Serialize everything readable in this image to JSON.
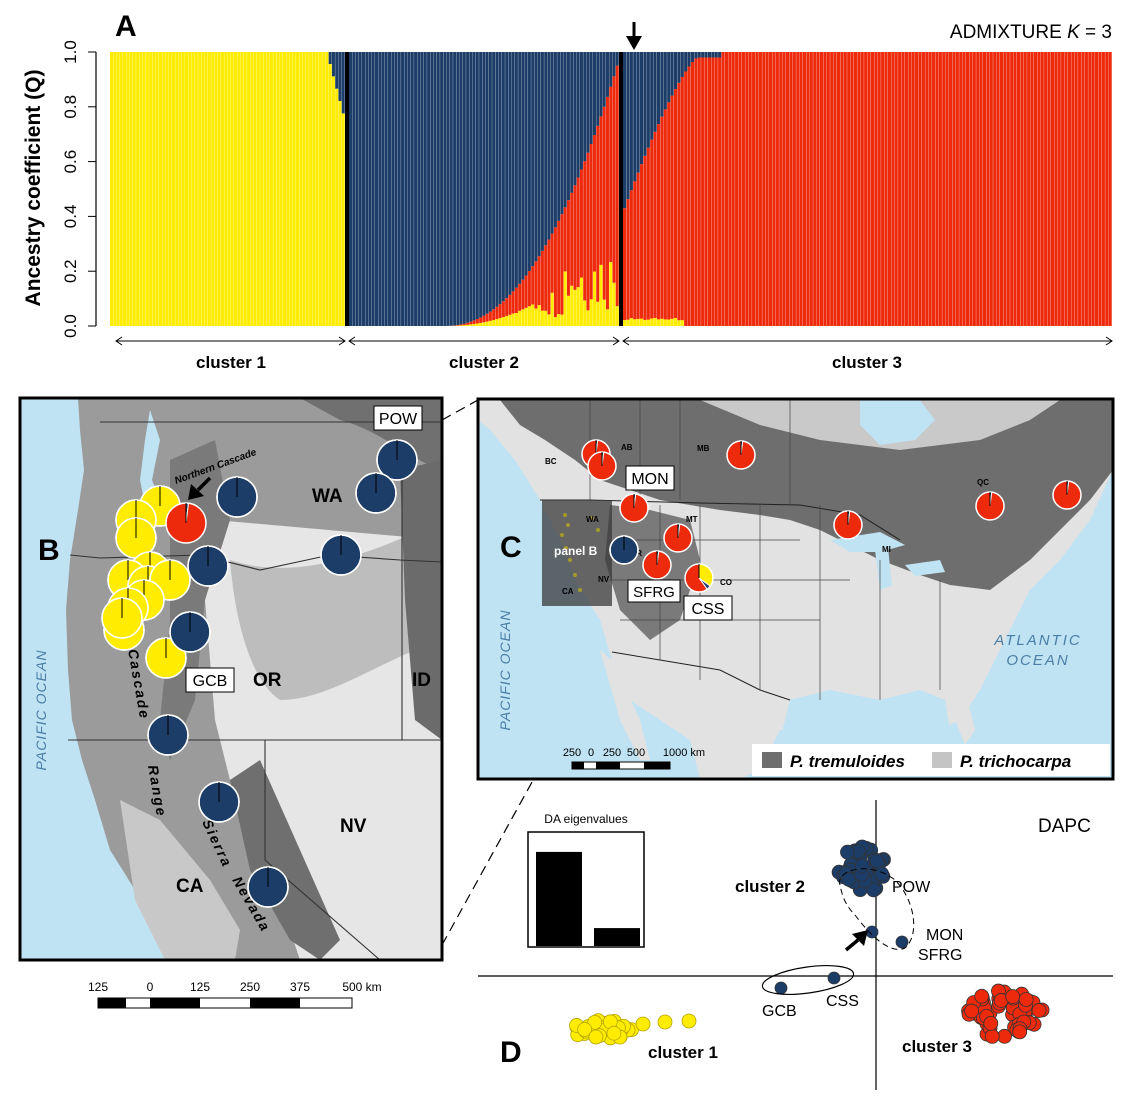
{
  "panel_a": {
    "letter": "A",
    "title_prefix": "ADMIXTURE ",
    "title_k": "K",
    "title_suffix": " = 3",
    "ylabel": "Ancestry coefficient (Q)",
    "yticks": [
      "0.0",
      "0.2",
      "0.4",
      "0.6",
      "0.8",
      "1.0"
    ],
    "clusters": [
      "cluster 1",
      "cluster 2",
      "cluster 3"
    ],
    "colors": {
      "c1": "#ffec00",
      "c2": "#1c3d67",
      "c3": "#ee2a0d"
    },
    "counts": {
      "c1": 72,
      "c2": 83,
      "c3": 144
    }
  },
  "panel_b": {
    "letter": "B",
    "ocean": "PACIFIC OCEAN",
    "states": [
      "WA",
      "OR",
      "ID",
      "NV",
      "CA"
    ],
    "ranges": [
      "Northern Cascade",
      "Cascade",
      "Range",
      "Sierra",
      "Nevada"
    ],
    "boxes": [
      "POW",
      "GCB"
    ],
    "scale": [
      "125",
      "0",
      "125",
      "250",
      "375",
      "500 km"
    ]
  },
  "panel_c": {
    "letter": "C",
    "oceans": [
      "PACIFIC OCEAN",
      "ATLANTIC",
      "OCEAN"
    ],
    "provinces": [
      "AB",
      "BC",
      "MB",
      "QC",
      "MT",
      "WA",
      "MI",
      "NV",
      "CA",
      "CO",
      "OR"
    ],
    "boxes": [
      "MON",
      "SFRG",
      "CSS"
    ],
    "inset_label": "panel B",
    "scale": [
      "250",
      "0",
      "250",
      "500",
      "1000 km"
    ],
    "legend": [
      "P. tremuloides",
      "P. trichocarpa"
    ]
  },
  "panel_d": {
    "letter": "D",
    "title": "DAPC",
    "eigen_title": "DA eigenvalues",
    "eigenvalues": [
      0.84,
      0.16
    ],
    "clusters": [
      "cluster 1",
      "cluster 2",
      "cluster 3"
    ],
    "points": [
      "POW",
      "MON",
      "SFRG",
      "GCB",
      "CSS"
    ]
  }
}
